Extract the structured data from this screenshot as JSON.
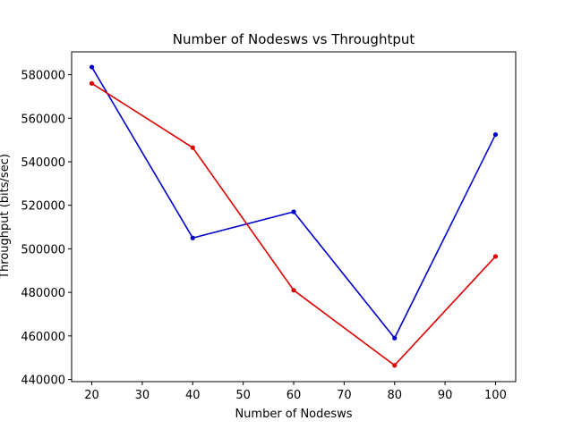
{
  "chart_data": {
    "type": "line",
    "title": "Number of Nodesws vs Throughtput",
    "xlabel": "Number of Nodesws",
    "ylabel": "Throughput (bits/sec)",
    "x": [
      20,
      40,
      60,
      80,
      100
    ],
    "xlim": [
      16,
      104
    ],
    "ylim": [
      439000,
      590500
    ],
    "xticks": [
      20,
      30,
      40,
      50,
      60,
      70,
      80,
      90,
      100
    ],
    "yticks": [
      440000,
      460000,
      480000,
      500000,
      520000,
      540000,
      560000,
      580000
    ],
    "grid": false,
    "series": [
      {
        "color": "#0000cc",
        "values": [
          583500,
          505000,
          517000,
          459000,
          552500
        ]
      },
      {
        "color": "#dd0000",
        "values": [
          576000,
          546500,
          481000,
          446500,
          496500
        ]
      }
    ]
  }
}
